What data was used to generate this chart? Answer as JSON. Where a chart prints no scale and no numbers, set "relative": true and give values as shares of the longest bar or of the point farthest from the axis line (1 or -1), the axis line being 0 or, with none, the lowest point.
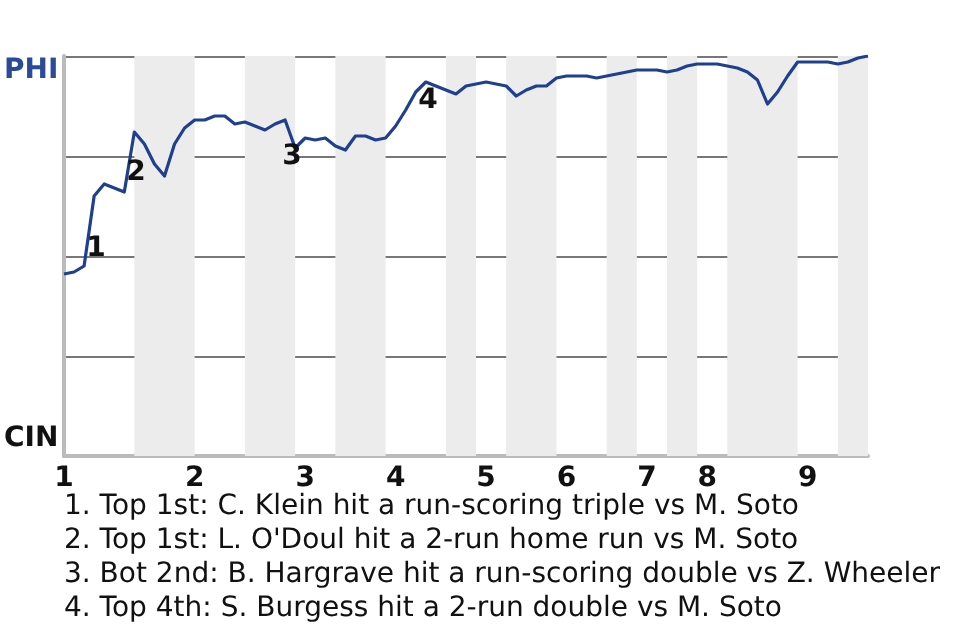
{
  "chart_data": {
    "type": "line",
    "relative": true,
    "categories": [
      "1",
      null,
      null,
      null,
      null,
      null,
      null,
      null,
      null,
      null,
      null,
      null,
      null,
      "2",
      null,
      null,
      null,
      null,
      null,
      null,
      null,
      null,
      null,
      null,
      "3",
      null,
      null,
      null,
      null,
      null,
      null,
      null,
      null,
      "4",
      null,
      null,
      null,
      null,
      null,
      null,
      null,
      null,
      "5",
      null,
      null,
      null,
      null,
      null,
      null,
      null,
      "6",
      null,
      null,
      null,
      null,
      null,
      null,
      null,
      "7",
      null,
      null,
      null,
      null,
      null,
      "8",
      null,
      null,
      null,
      null,
      null,
      null,
      null,
      null,
      null,
      "9",
      null,
      null,
      null,
      null,
      null,
      null
    ],
    "series": [
      {
        "color": "#1f3f8f",
        "values": [
          0.455,
          0.46,
          0.475,
          0.65,
          0.68,
          0.67,
          0.66,
          0.81,
          0.78,
          0.73,
          0.7,
          0.78,
          0.82,
          0.84,
          0.84,
          0.85,
          0.85,
          0.83,
          0.835,
          0.825,
          0.815,
          0.83,
          0.84,
          0.77,
          0.795,
          0.79,
          0.795,
          0.775,
          0.765,
          0.8,
          0.8,
          0.79,
          0.795,
          0.825,
          0.865,
          0.91,
          0.935,
          0.925,
          0.915,
          0.905,
          0.925,
          0.93,
          0.935,
          0.93,
          0.925,
          0.9,
          0.915,
          0.925,
          0.925,
          0.945,
          0.95,
          0.95,
          0.95,
          0.945,
          0.95,
          0.955,
          0.96,
          0.965,
          0.965,
          0.965,
          0.96,
          0.965,
          0.975,
          0.98,
          0.98,
          0.98,
          0.975,
          0.97,
          0.96,
          0.94,
          0.88,
          0.91,
          0.95,
          0.985,
          0.985,
          0.985,
          0.985,
          0.98,
          0.985,
          0.995,
          1
        ]
      }
    ],
    "grid": "y",
    "annotations": [
      "PHI",
      "CIN",
      "1",
      "2",
      "3",
      "4",
      "1. Top 1st: C. Klein hit a run-scoring triple vs M. Soto",
      "2. Top 1st: L. O'Doul hit a 2-run home run vs M. Soto",
      "3. Bot 2nd: B. Hargrave hit a run-scoring double vs Z. Wheeler",
      "4. Top 4th: S. Burgess hit a 2-run double vs M. Soto"
    ],
    "marker": "none"
  }
}
